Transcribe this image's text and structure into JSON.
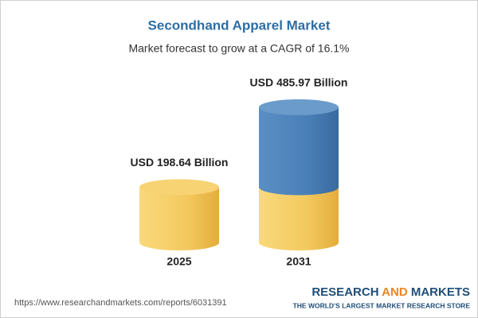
{
  "chart_data": {
    "type": "cylinder",
    "title": "Secondhand Apparel Market",
    "subtitle": "Market forecast to grow at a CAGR of 16.1%",
    "categories": [
      "2025",
      "2031"
    ],
    "values": [
      198.64,
      485.97
    ],
    "value_labels": [
      "USD 198.64 Billion",
      "USD 485.97 Billion"
    ],
    "colors": [
      "#f0c458",
      "#4a80b8"
    ]
  },
  "footer": {
    "url": "https://www.researchandmarkets.com/reports/6031391",
    "logo": [
      "RESEARCH",
      "AND",
      "MARKETS"
    ],
    "tagline": "THE WORLD'S LARGEST MARKET RESEARCH STORE"
  }
}
